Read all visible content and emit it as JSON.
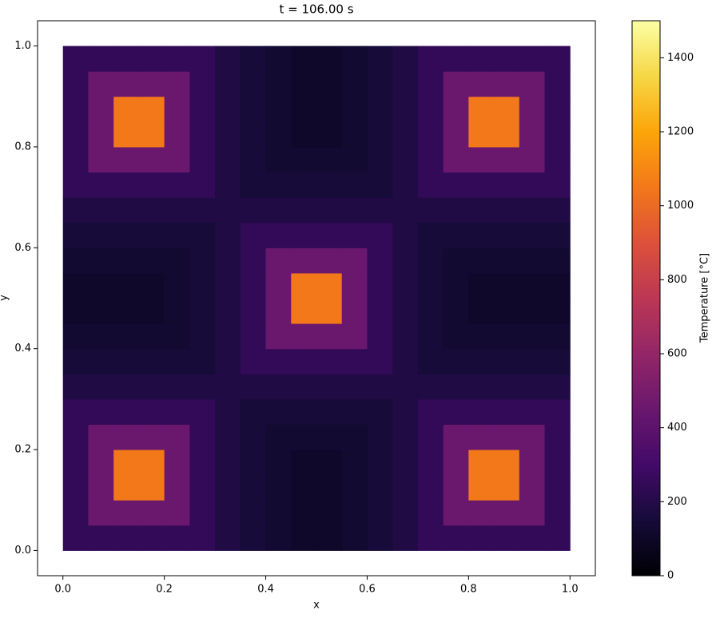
{
  "chart_data": {
    "type": "heatmap",
    "title": "t = 106.00 s",
    "x_label": "x",
    "y_label": "y",
    "x": [
      0.025,
      0.075,
      0.125,
      0.175,
      0.225,
      0.275,
      0.325,
      0.375,
      0.425,
      0.475,
      0.525,
      0.575,
      0.625,
      0.675,
      0.725,
      0.775,
      0.825,
      0.875,
      0.925,
      0.975
    ],
    "y": [
      0.025,
      0.075,
      0.125,
      0.175,
      0.225,
      0.275,
      0.325,
      0.375,
      0.425,
      0.475,
      0.525,
      0.575,
      0.625,
      0.675,
      0.725,
      0.775,
      0.825,
      0.875,
      0.925,
      0.975
    ],
    "z": [
      [
        250,
        250,
        250,
        250,
        250,
        250,
        185,
        150,
        130,
        110,
        110,
        130,
        150,
        185,
        250,
        250,
        250,
        250,
        250,
        250
      ],
      [
        250,
        450,
        450,
        450,
        450,
        250,
        185,
        150,
        130,
        110,
        110,
        130,
        150,
        185,
        250,
        450,
        450,
        450,
        450,
        250
      ],
      [
        250,
        450,
        1050,
        1050,
        450,
        250,
        185,
        150,
        130,
        110,
        110,
        130,
        150,
        185,
        250,
        450,
        1050,
        1050,
        450,
        250
      ],
      [
        250,
        450,
        1050,
        1050,
        450,
        250,
        185,
        150,
        130,
        110,
        110,
        130,
        150,
        185,
        250,
        450,
        1050,
        1050,
        450,
        250
      ],
      [
        250,
        450,
        450,
        450,
        450,
        250,
        185,
        150,
        130,
        130,
        130,
        130,
        150,
        185,
        250,
        450,
        450,
        450,
        450,
        250
      ],
      [
        250,
        250,
        250,
        250,
        250,
        250,
        185,
        150,
        150,
        150,
        150,
        150,
        150,
        185,
        250,
        250,
        250,
        250,
        250,
        250
      ],
      [
        185,
        185,
        185,
        185,
        185,
        185,
        185,
        185,
        185,
        185,
        185,
        185,
        185,
        185,
        185,
        185,
        185,
        185,
        185,
        185
      ],
      [
        150,
        150,
        150,
        150,
        150,
        150,
        185,
        250,
        250,
        250,
        250,
        250,
        250,
        185,
        150,
        150,
        150,
        150,
        150,
        150
      ],
      [
        130,
        130,
        130,
        130,
        130,
        150,
        185,
        250,
        450,
        450,
        450,
        450,
        250,
        185,
        150,
        130,
        130,
        130,
        130,
        130
      ],
      [
        110,
        110,
        110,
        110,
        130,
        150,
        185,
        250,
        450,
        1050,
        1050,
        450,
        250,
        185,
        150,
        130,
        110,
        110,
        110,
        110
      ],
      [
        110,
        110,
        110,
        110,
        130,
        150,
        185,
        250,
        450,
        1050,
        1050,
        450,
        250,
        185,
        150,
        130,
        110,
        110,
        110,
        110
      ],
      [
        130,
        130,
        130,
        130,
        130,
        150,
        185,
        250,
        450,
        450,
        450,
        450,
        250,
        185,
        150,
        130,
        130,
        130,
        130,
        130
      ],
      [
        150,
        150,
        150,
        150,
        150,
        150,
        185,
        250,
        250,
        250,
        250,
        250,
        250,
        185,
        150,
        150,
        150,
        150,
        150,
        150
      ],
      [
        185,
        185,
        185,
        185,
        185,
        185,
        185,
        185,
        185,
        185,
        185,
        185,
        185,
        185,
        185,
        185,
        185,
        185,
        185,
        185
      ],
      [
        250,
        250,
        250,
        250,
        250,
        250,
        185,
        150,
        150,
        150,
        150,
        150,
        150,
        185,
        250,
        250,
        250,
        250,
        250,
        250
      ],
      [
        250,
        450,
        450,
        450,
        450,
        250,
        185,
        150,
        130,
        130,
        130,
        130,
        150,
        185,
        250,
        450,
        450,
        450,
        450,
        250
      ],
      [
        250,
        450,
        1050,
        1050,
        450,
        250,
        185,
        150,
        130,
        110,
        110,
        130,
        150,
        185,
        250,
        450,
        1050,
        1050,
        450,
        250
      ],
      [
        250,
        450,
        1050,
        1050,
        450,
        250,
        185,
        150,
        130,
        110,
        110,
        130,
        150,
        185,
        250,
        450,
        1050,
        1050,
        450,
        250
      ],
      [
        250,
        450,
        450,
        450,
        450,
        250,
        185,
        150,
        130,
        110,
        110,
        130,
        150,
        185,
        250,
        450,
        450,
        450,
        450,
        250
      ],
      [
        250,
        250,
        250,
        250,
        250,
        250,
        185,
        150,
        130,
        110,
        110,
        130,
        150,
        185,
        250,
        250,
        250,
        250,
        250,
        250
      ]
    ],
    "xlim": [
      -0.05,
      1.05
    ],
    "ylim": [
      -0.05,
      1.05
    ],
    "xticks": [
      {
        "value": 0,
        "label": "0.0"
      },
      0.2,
      0.4,
      0.6,
      0.8,
      {
        "value": 1,
        "label": "1.0"
      }
    ],
    "yticks": [
      {
        "value": 0,
        "label": "0.0"
      },
      0.2,
      0.4,
      0.6,
      0.8,
      {
        "value": 1,
        "label": "1.0"
      }
    ],
    "colormap": "inferno",
    "colorbar": {
      "label": "Temperature [°C]",
      "lim": [
        0,
        1500
      ],
      "ticks": [
        0,
        200,
        400,
        600,
        800,
        1000,
        1200,
        1400
      ]
    }
  }
}
